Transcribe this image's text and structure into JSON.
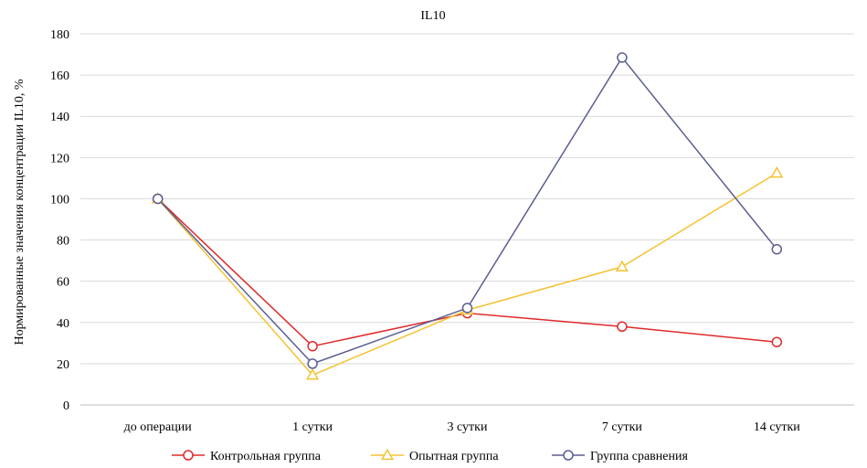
{
  "chart_data": {
    "type": "line",
    "title": "IL10",
    "xlabel": "",
    "ylabel": "Нормированные значения концентрации IL10, %",
    "categories": [
      "до операции",
      "1 сутки",
      "3 сутки",
      "7 сутки",
      "14 сутки"
    ],
    "ylim": [
      0,
      180
    ],
    "yticks": [
      0,
      20,
      40,
      60,
      80,
      100,
      120,
      140,
      160,
      180
    ],
    "grid": true,
    "legend": "bottom",
    "series": [
      {
        "name": "Контрольная группа",
        "marker": "circle",
        "color": "#e02a2a",
        "values": [
          100,
          28.5,
          44.5,
          38,
          30.5
        ]
      },
      {
        "name": "Опытная группа",
        "marker": "triangle",
        "color": "#f5c233",
        "values": [
          100,
          14.5,
          46,
          67,
          112.5
        ]
      },
      {
        "name": "Группа сравнения",
        "marker": "circle",
        "color": "#5b5f90",
        "values": [
          100,
          20,
          47,
          168.5,
          75.5
        ]
      }
    ]
  }
}
